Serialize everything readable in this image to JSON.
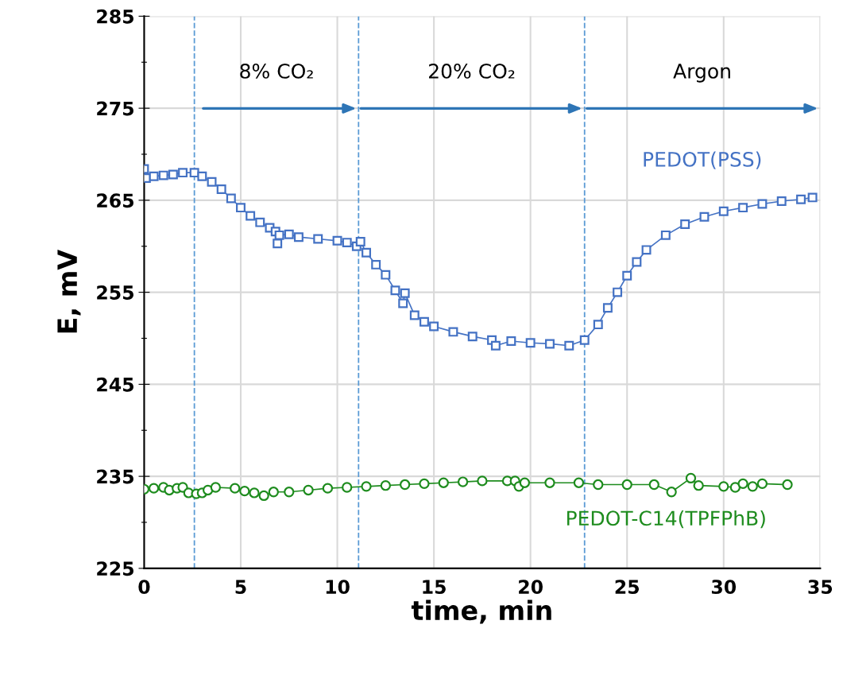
{
  "chart_data": {
    "type": "line",
    "xlabel": "time, min",
    "ylabel": "E, mV",
    "xlim": [
      0,
      35
    ],
    "ylim": [
      225,
      285
    ],
    "xticks": [
      0,
      5,
      10,
      15,
      20,
      25,
      30,
      35
    ],
    "yticks": [
      225,
      {
        "value": 230,
        "label": null
      },
      235,
      {
        "value": 240,
        "label": null
      },
      245,
      {
        "value": 250,
        "label": null
      },
      255,
      {
        "value": 260,
        "label": null
      },
      265,
      {
        "value": 270,
        "label": null
      },
      275,
      {
        "value": 280,
        "label": null
      },
      285
    ],
    "grid": true,
    "line_style": "solid",
    "series": [
      {
        "name": "PEDOT(PSS)",
        "color": "#4472c4",
        "marker": "square",
        "x": [
          0,
          0.1,
          0.5,
          1,
          1.5,
          2,
          2.6,
          3,
          3.5,
          4,
          4.5,
          5,
          5.5,
          6,
          6.5,
          6.8,
          6.9,
          7,
          7.5,
          8,
          9,
          10,
          10.5,
          11,
          11.2,
          11.5,
          12,
          12.5,
          13,
          13.4,
          13.5,
          14,
          14.5,
          15,
          16,
          17,
          18,
          18.2,
          19,
          20,
          21,
          22,
          22.8,
          23.5,
          24,
          24.5,
          25,
          25.5,
          26,
          27,
          28,
          29,
          30,
          31,
          32,
          33,
          34,
          34.6
        ],
        "values": [
          268.4,
          267.4,
          267.6,
          267.7,
          267.8,
          268.0,
          268.0,
          267.6,
          267.0,
          266.2,
          265.2,
          264.2,
          263.3,
          262.6,
          262.0,
          261.6,
          260.3,
          261.2,
          261.3,
          261.0,
          260.8,
          260.6,
          260.4,
          260.0,
          260.5,
          259.3,
          258.0,
          256.9,
          255.2,
          253.8,
          254.9,
          252.5,
          251.8,
          251.3,
          250.7,
          250.2,
          249.8,
          249.2,
          249.7,
          249.5,
          249.4,
          249.2,
          249.8,
          251.5,
          253.3,
          255.0,
          256.8,
          258.3,
          259.6,
          261.2,
          262.4,
          263.2,
          263.8,
          264.2,
          264.6,
          264.9,
          265.1,
          265.3
        ]
      },
      {
        "name": "PEDOT-C14(TPFPhB)",
        "color": "#1e8c1e",
        "marker": "circle",
        "x": [
          0,
          0.5,
          1,
          1.3,
          1.7,
          2,
          2.3,
          2.7,
          3,
          3.3,
          3.7,
          4.7,
          5.2,
          5.7,
          6.2,
          6.7,
          7.5,
          8.5,
          9.5,
          10.5,
          11.5,
          12.5,
          13.5,
          14.5,
          15.5,
          16.5,
          17.5,
          18.8,
          19.2,
          19.4,
          19.7,
          21,
          22.5,
          23.5,
          25,
          26.4,
          27.3,
          28.3,
          28.7,
          30,
          30.6,
          31,
          31.5,
          32,
          33.3
        ],
        "values": [
          233.6,
          233.7,
          233.8,
          233.5,
          233.7,
          233.8,
          233.2,
          233.1,
          233.2,
          233.5,
          233.8,
          233.7,
          233.4,
          233.2,
          232.9,
          233.3,
          233.3,
          233.5,
          233.7,
          233.8,
          233.9,
          234.0,
          234.1,
          234.2,
          234.3,
          234.4,
          234.5,
          234.5,
          234.5,
          233.9,
          234.3,
          234.3,
          234.3,
          234.1,
          234.1,
          234.1,
          233.3,
          234.8,
          234.0,
          233.9,
          233.8,
          234.2,
          233.9,
          234.2,
          234.1
        ]
      }
    ],
    "ref_lines": [
      {
        "axis": "x",
        "value": 2.6,
        "color": "#5b9bd5",
        "line_style": "dashed"
      },
      {
        "axis": "x",
        "value": 11.1,
        "color": "#5b9bd5",
        "line_style": "dashed"
      },
      {
        "axis": "x",
        "value": 22.8,
        "color": "#5b9bd5",
        "line_style": "dashed"
      }
    ],
    "annotations": [
      "8% CO₂",
      "20% CO₂",
      "Argon"
    ]
  }
}
